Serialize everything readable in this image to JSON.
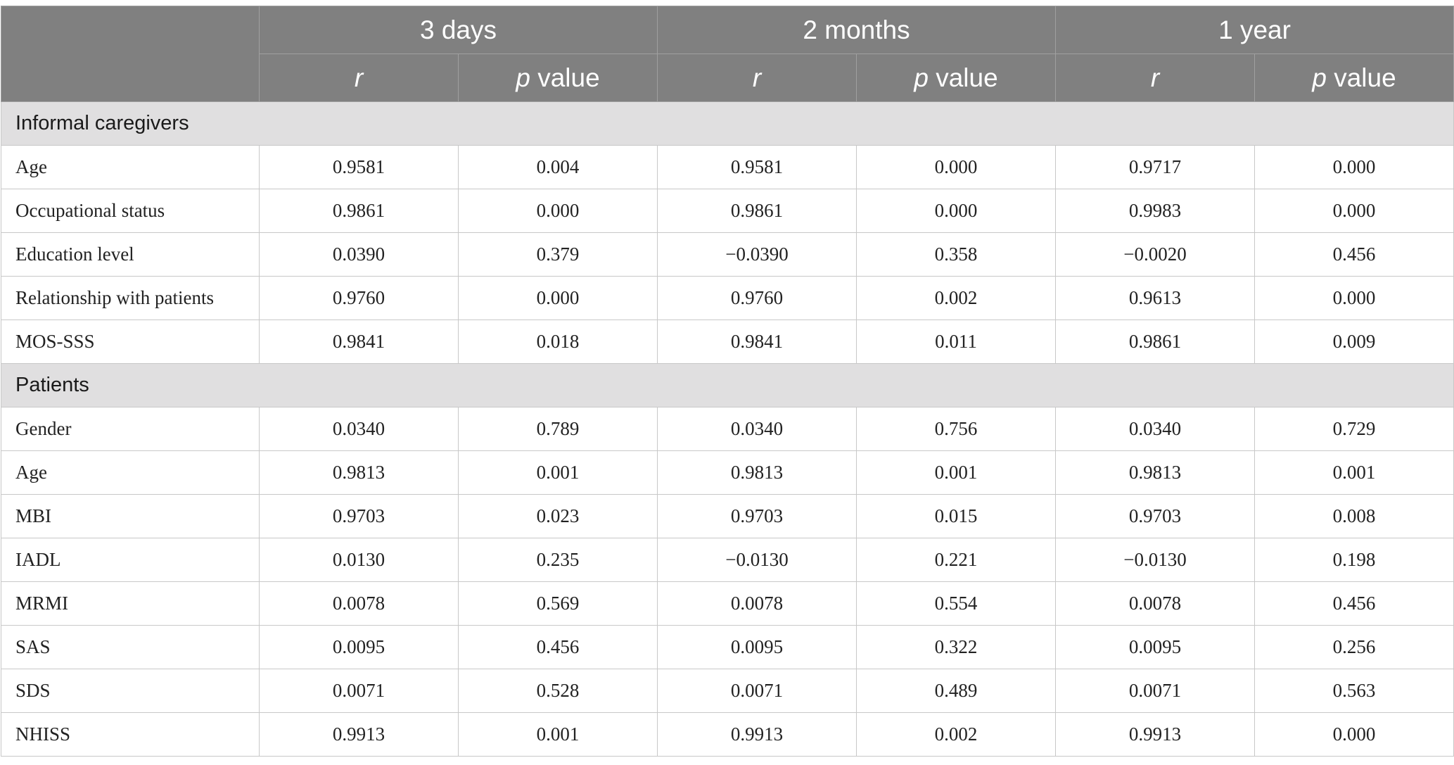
{
  "header": {
    "periods": [
      "3 days",
      "2 months",
      "1 year"
    ],
    "r_label": "r",
    "p_italic": "p",
    "p_suffix": " value"
  },
  "sections": [
    {
      "title": "Informal caregivers",
      "rows": [
        {
          "label": "Age",
          "values": [
            "0.9581",
            "0.004",
            "0.9581",
            "0.000",
            "0.9717",
            "0.000"
          ]
        },
        {
          "label": "Occupational status",
          "values": [
            "0.9861",
            "0.000",
            "0.9861",
            "0.000",
            "0.9983",
            "0.000"
          ]
        },
        {
          "label": "Education level",
          "values": [
            "0.0390",
            "0.379",
            "−0.0390",
            "0.358",
            "−0.0020",
            "0.456"
          ]
        },
        {
          "label": "Relationship with patients",
          "values": [
            "0.9760",
            "0.000",
            "0.9760",
            "0.002",
            "0.9613",
            "0.000"
          ]
        },
        {
          "label": "MOS-SSS",
          "values": [
            "0.9841",
            "0.018",
            "0.9841",
            "0.011",
            "0.9861",
            "0.009"
          ]
        }
      ]
    },
    {
      "title": "Patients",
      "rows": [
        {
          "label": "Gender",
          "values": [
            "0.0340",
            "0.789",
            "0.0340",
            "0.756",
            "0.0340",
            "0.729"
          ]
        },
        {
          "label": "Age",
          "values": [
            "0.9813",
            "0.001",
            "0.9813",
            "0.001",
            "0.9813",
            "0.001"
          ]
        },
        {
          "label": "MBI",
          "values": [
            "0.9703",
            "0.023",
            "0.9703",
            "0.015",
            "0.9703",
            "0.008"
          ]
        },
        {
          "label": "IADL",
          "values": [
            "0.0130",
            "0.235",
            "−0.0130",
            "0.221",
            "−0.0130",
            "0.198"
          ]
        },
        {
          "label": "MRMI",
          "values": [
            "0.0078",
            "0.569",
            "0.0078",
            "0.554",
            "0.0078",
            "0.456"
          ]
        },
        {
          "label": "SAS",
          "values": [
            "0.0095",
            "0.456",
            "0.0095",
            "0.322",
            "0.0095",
            "0.256"
          ]
        },
        {
          "label": "SDS",
          "values": [
            "0.0071",
            "0.528",
            "0.0071",
            "0.489",
            "0.0071",
            "0.563"
          ]
        },
        {
          "label": "NHISS",
          "values": [
            "0.9913",
            "0.001",
            "0.9913",
            "0.002",
            "0.9913",
            "0.000"
          ]
        }
      ]
    }
  ]
}
